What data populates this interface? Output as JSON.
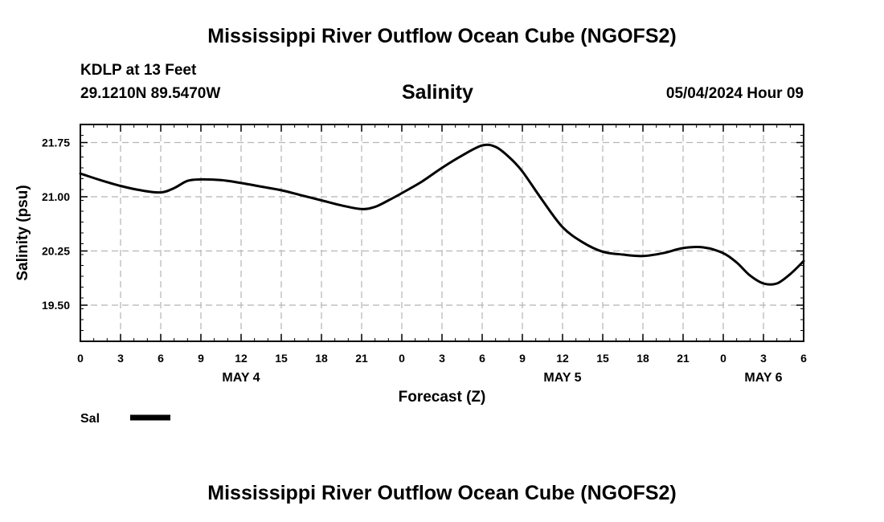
{
  "header": {
    "title": "Mississippi River Outflow Ocean Cube (NGOFS2)",
    "station": "KDLP at 13 Feet",
    "coords": "29.1210N  89.5470W",
    "variable": "Salinity",
    "datetime": "05/04/2024 Hour 09"
  },
  "footer": {
    "title": "Mississippi River Outflow Ocean Cube (NGOFS2)"
  },
  "chart_data": {
    "type": "line",
    "xlabel": "Forecast (Z)",
    "ylabel": "Salinity (psu)",
    "x_unit": "hours since May 4 00Z",
    "xlim": [
      0,
      54
    ],
    "ylim": [
      19.0,
      22.0
    ],
    "grid": true,
    "legend_placement": "bottom-left",
    "x_ticks": [
      0,
      3,
      6,
      9,
      12,
      15,
      18,
      21,
      24,
      27,
      30,
      33,
      36,
      39,
      42,
      45,
      48,
      51,
      54
    ],
    "x_tick_labels": [
      "0",
      "3",
      "6",
      "9",
      "12",
      "15",
      "18",
      "21",
      "0",
      "3",
      "6",
      "9",
      "12",
      "15",
      "18",
      "21",
      "0",
      "3",
      "6"
    ],
    "y_ticks": [
      19.5,
      20.25,
      21.0,
      21.75
    ],
    "y_tick_labels": [
      "19.50",
      "20.25",
      "21.00",
      "21.75"
    ],
    "date_labels": [
      {
        "x": 12,
        "label": "MAY 4"
      },
      {
        "x": 36,
        "label": "MAY 5"
      },
      {
        "x": 51,
        "label": "MAY 6"
      }
    ],
    "series": [
      {
        "name": "Sal",
        "color": "#000000",
        "x": [
          0,
          1.5,
          3,
          4.5,
          6,
          7,
          8,
          9,
          10.5,
          12,
          13.5,
          15,
          16.5,
          18,
          19.5,
          21,
          22,
          23,
          24,
          25.5,
          27,
          28.5,
          30,
          31,
          32,
          33,
          34.5,
          36,
          37.5,
          39,
          40.5,
          42,
          43.5,
          45,
          46.5,
          48,
          49,
          50,
          51,
          52,
          53,
          54
        ],
        "values": [
          21.32,
          21.23,
          21.15,
          21.09,
          21.06,
          21.12,
          21.22,
          21.24,
          21.23,
          21.19,
          21.14,
          21.09,
          21.02,
          20.95,
          20.88,
          20.83,
          20.86,
          20.95,
          21.05,
          21.21,
          21.4,
          21.57,
          21.71,
          21.69,
          21.55,
          21.35,
          20.95,
          20.58,
          20.37,
          20.24,
          20.2,
          20.18,
          20.22,
          20.29,
          20.3,
          20.22,
          20.09,
          19.91,
          19.8,
          19.8,
          19.93,
          20.11
        ]
      }
    ]
  }
}
